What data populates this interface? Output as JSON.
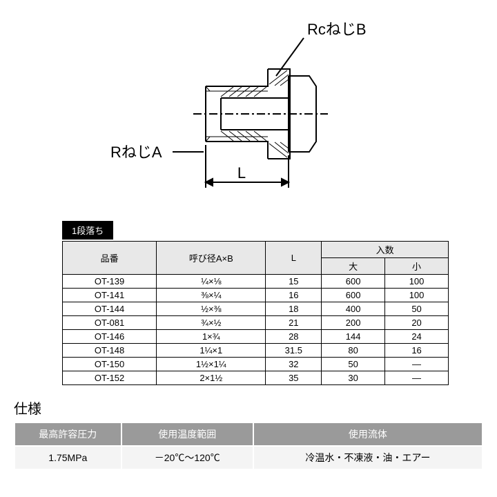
{
  "diagram": {
    "label_top": "RcねじB",
    "label_left": "RねじA",
    "dim_label": "L",
    "stroke": "#000000",
    "stroke_width": 2,
    "label_fontsize": 22
  },
  "section_label": "1段落ち",
  "parts_table": {
    "headers": {
      "col1": "品番",
      "col2": "呼び径A×B",
      "col3": "L",
      "col4_group": "入数",
      "col4a": "大",
      "col4b": "小"
    },
    "rows": [
      {
        "p": "OT-139",
        "ab": "¼×⅛",
        "l": "15",
        "big": "600",
        "small": "100"
      },
      {
        "p": "OT-141",
        "ab": "⅜×¼",
        "l": "16",
        "big": "600",
        "small": "100"
      },
      {
        "p": "OT-144",
        "ab": "½×⅜",
        "l": "18",
        "big": "400",
        "small": "50"
      },
      {
        "p": "OT-081",
        "ab": "¾×½",
        "l": "21",
        "big": "200",
        "small": "20"
      },
      {
        "p": "OT-146",
        "ab": "1×¾",
        "l": "28",
        "big": "144",
        "small": "24"
      },
      {
        "p": "OT-148",
        "ab": "1¼×1",
        "l": "31.5",
        "big": "80",
        "small": "16"
      },
      {
        "p": "OT-150",
        "ab": "1½×1¼",
        "l": "32",
        "big": "50",
        "small": "—"
      },
      {
        "p": "OT-152",
        "ab": "2×1½",
        "l": "35",
        "big": "30",
        "small": "—"
      }
    ]
  },
  "spec_heading": "仕様",
  "spec_table": {
    "headers": [
      "最高許容圧力",
      "使用温度範囲",
      "使用流体"
    ],
    "values": [
      "1.75MPa",
      "－20℃～120℃",
      "冷温水・不凍液・油・エアー"
    ]
  }
}
